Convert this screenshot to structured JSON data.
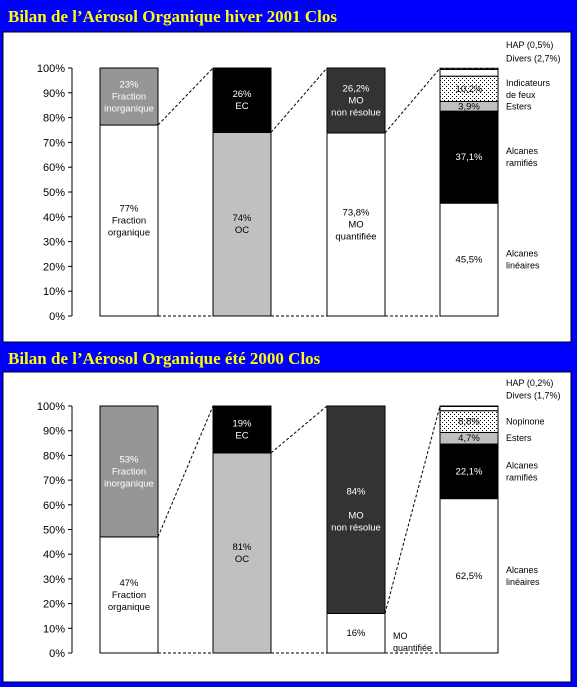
{
  "chart_data": [
    {
      "type": "bar",
      "stacked": true,
      "title": "Bilan de l’Aérosol Organique hiver 2001 Clos",
      "ylim": [
        0,
        100
      ],
      "yticks": [
        "0%",
        "10%",
        "20%",
        "30%",
        "40%",
        "50%",
        "60%",
        "70%",
        "80%",
        "90%",
        "100%"
      ],
      "bars": [
        {
          "segments": [
            {
              "value": 77,
              "color": "#ffffff",
              "label_lines": [
                "77%",
                "Fraction",
                "organique"
              ],
              "text_color": "#000000"
            },
            {
              "value": 23,
              "color": "#969696",
              "label_lines": [
                "23%",
                "Fraction",
                "inorganique"
              ],
              "text_color": "#ffffff"
            }
          ]
        },
        {
          "segments": [
            {
              "value": 74,
              "color": "#c0c0c0",
              "label_lines": [
                "74%",
                "OC"
              ],
              "text_color": "#000000"
            },
            {
              "value": 26,
              "color": "#000000",
              "label_lines": [
                "26%",
                "EC"
              ],
              "text_color": "#ffffff"
            }
          ]
        },
        {
          "segments": [
            {
              "value": 73.8,
              "color": "#ffffff",
              "label_lines": [
                "73,8%",
                "MO",
                "quantifiée"
              ],
              "text_color": "#000000"
            },
            {
              "value": 26.2,
              "color": "#333333",
              "label_lines": [
                "26,2%",
                "MO",
                "non résolue"
              ],
              "text_color": "#ffffff"
            }
          ]
        },
        {
          "segments": [
            {
              "value": 45.5,
              "color": "#ffffff",
              "label_lines": [
                "45,5%"
              ],
              "side_lines": [
                "Alcanes",
                "linéaires"
              ],
              "text_color": "#000000"
            },
            {
              "value": 37.1,
              "color": "#000000",
              "label_lines": [
                "37,1%"
              ],
              "side_lines": [
                "Alcanes",
                "ramifiés"
              ],
              "text_color": "#ffffff"
            },
            {
              "value": 3.9,
              "color": "#c0c0c0",
              "label_lines": [
                "3,9%"
              ],
              "side_lines": [
                "Esters"
              ],
              "text_color": "#000000"
            },
            {
              "value": 10.2,
              "color": "#ffffff",
              "pattern": "dots",
              "label_lines": [
                "10,2%"
              ],
              "side_lines": [
                "Indicateurs",
                "de feux"
              ],
              "text_color": "#000000"
            },
            {
              "value": 2.7,
              "color": "#ffffff",
              "label_lines": [],
              "side_lines": [
                "Divers (2,7%)"
              ],
              "text_color": "#000000"
            },
            {
              "value": 0.5,
              "color": "#ffffff",
              "pattern": "hatch",
              "label_lines": [],
              "side_lines": [
                "HAP (0,5%)"
              ],
              "text_color": "#000000"
            }
          ]
        }
      ]
    },
    {
      "type": "bar",
      "stacked": true,
      "title": "Bilan de l’Aérosol Organique été 2000 Clos",
      "ylim": [
        0,
        100
      ],
      "yticks": [
        "0%",
        "10%",
        "20%",
        "30%",
        "40%",
        "50%",
        "60%",
        "70%",
        "80%",
        "90%",
        "100%"
      ],
      "bars": [
        {
          "segments": [
            {
              "value": 47,
              "color": "#ffffff",
              "label_lines": [
                "47%",
                "Fraction",
                "organique"
              ],
              "text_color": "#000000"
            },
            {
              "value": 53,
              "color": "#969696",
              "label_lines": [
                "53%",
                "Fraction",
                "inorganique"
              ],
              "text_color": "#ffffff"
            }
          ]
        },
        {
          "segments": [
            {
              "value": 81,
              "color": "#c0c0c0",
              "label_lines": [
                "81%",
                "OC"
              ],
              "text_color": "#000000"
            },
            {
              "value": 19,
              "color": "#000000",
              "label_lines": [
                "19%",
                "EC"
              ],
              "text_color": "#ffffff"
            }
          ]
        },
        {
          "segments": [
            {
              "value": 16,
              "color": "#ffffff",
              "label_lines": [
                "16%"
              ],
              "side_lines": [
                "MO",
                "quantifiée"
              ],
              "text_color": "#000000"
            },
            {
              "value": 84,
              "color": "#333333",
              "label_lines": [
                "84%",
                "",
                "MO",
                "non résolue"
              ],
              "text_color": "#ffffff"
            }
          ]
        },
        {
          "segments": [
            {
              "value": 62.5,
              "color": "#ffffff",
              "label_lines": [
                "62,5%"
              ],
              "side_lines": [
                "Alcanes",
                "linéaires"
              ],
              "text_color": "#000000"
            },
            {
              "value": 22.1,
              "color": "#000000",
              "label_lines": [
                "22,1%"
              ],
              "side_lines": [
                "Alcanes",
                "ramifiés"
              ],
              "text_color": "#ffffff"
            },
            {
              "value": 4.7,
              "color": "#c0c0c0",
              "label_lines": [
                "4,7%"
              ],
              "side_lines": [
                "Esters"
              ],
              "text_color": "#000000"
            },
            {
              "value": 8.8,
              "color": "#ffffff",
              "pattern": "dots",
              "label_lines": [
                "8,8%"
              ],
              "side_lines": [
                "Nopinone"
              ],
              "text_color": "#000000"
            },
            {
              "value": 1.7,
              "color": "#ffffff",
              "label_lines": [],
              "side_lines": [
                "Divers (1,7%)"
              ],
              "text_color": "#000000"
            },
            {
              "value": 0.2,
              "color": "#ffffff",
              "pattern": "hatch",
              "label_lines": [],
              "side_lines": [
                "HAP (0,2%)"
              ],
              "text_color": "#000000"
            }
          ]
        }
      ]
    }
  ]
}
